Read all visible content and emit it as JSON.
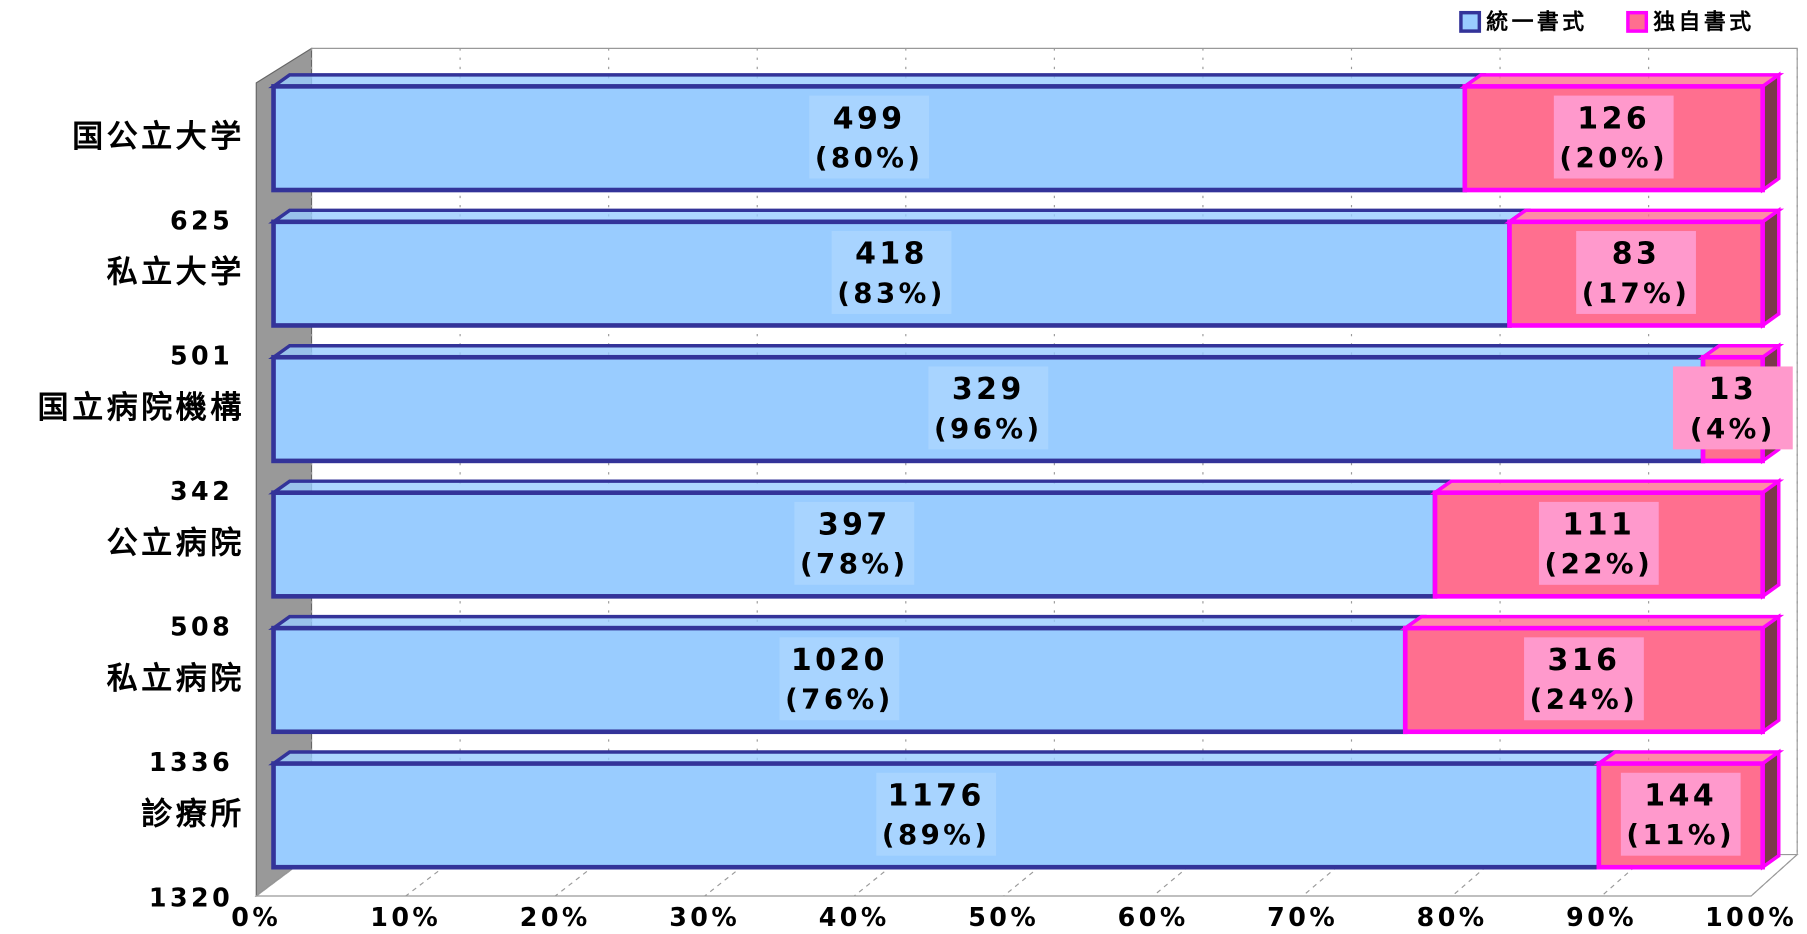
{
  "chart_data": {
    "type": "stacked-bar-100",
    "categories": [
      "国公立大学",
      "私立大学",
      "国立病院機構",
      "公立病院",
      "私立病院",
      "診療所"
    ],
    "category_totals": [
      625,
      501,
      342,
      508,
      1336,
      1320
    ],
    "series": [
      {
        "name": "統一書式",
        "color": "#99ccff",
        "border": "#333399",
        "label_color": "#a8d4ff",
        "values": [
          80,
          83,
          96,
          78,
          76,
          89
        ],
        "counts": [
          499,
          418,
          329,
          397,
          1020,
          1176
        ],
        "value_labels": [
          "(80%)",
          "(83%)",
          "(96%)",
          "(78%)",
          "(76%)",
          "(89%)"
        ]
      },
      {
        "name": "独自書式",
        "color": "#ff6f8f",
        "border": "#ff00ff",
        "label_color": "#ff99cc",
        "values": [
          20,
          17,
          4,
          22,
          24,
          11
        ],
        "counts": [
          126,
          83,
          13,
          111,
          316,
          144
        ],
        "value_labels": [
          "(20%)",
          "(17%)",
          "(4%)",
          "(22%)",
          "(24%)",
          "(11%)"
        ]
      }
    ],
    "xlim": [
      0,
      100
    ],
    "xticks": [
      {
        "value": 0,
        "label": "0%"
      },
      {
        "value": 10,
        "label": "10%"
      },
      {
        "value": 20,
        "label": "20%"
      },
      {
        "value": 30,
        "label": "30%"
      },
      {
        "value": 40,
        "label": "40%"
      },
      {
        "value": 50,
        "label": "50%"
      },
      {
        "value": 60,
        "label": "60%"
      },
      {
        "value": 70,
        "label": "70%"
      },
      {
        "value": 80,
        "label": "80%"
      },
      {
        "value": 90,
        "label": "90%"
      },
      {
        "value": 100,
        "label": "100%"
      }
    ],
    "grid": true,
    "legend": "top-right"
  }
}
